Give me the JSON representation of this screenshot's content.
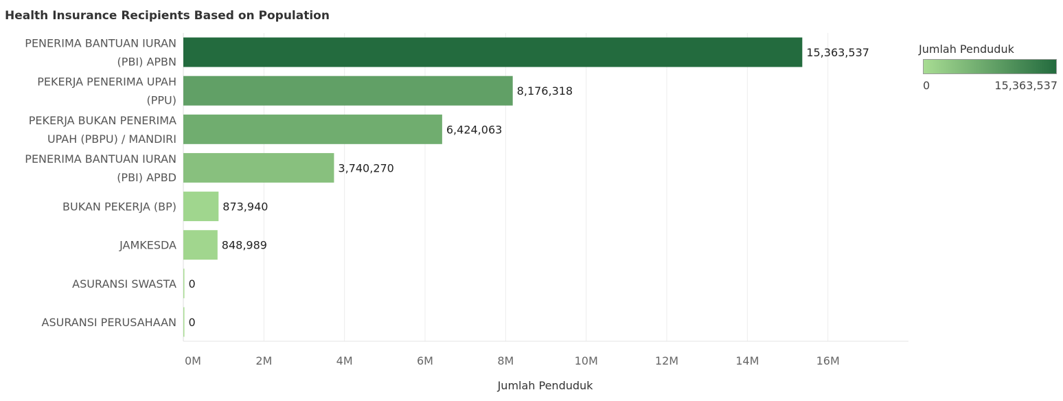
{
  "chart_data": {
    "type": "bar",
    "orientation": "horizontal",
    "title": "Health Insurance Recipients Based on Population",
    "xlabel": "Jumlah Penduduk",
    "ylabel": "",
    "categories": [
      [
        "PENERIMA BANTUAN IURAN",
        "(PBI) APBN"
      ],
      [
        "PEKERJA PENERIMA UPAH",
        "(PPU)"
      ],
      [
        "PEKERJA BUKAN PENERIMA",
        "UPAH (PBPU) / MANDIRI"
      ],
      [
        "PENERIMA BANTUAN IURAN",
        "(PBI) APBD"
      ],
      [
        "BUKAN PEKERJA (BP)"
      ],
      [
        "JAMKESDA"
      ],
      [
        "ASURANSI SWASTA"
      ],
      [
        "ASURANSI PERUSAHAAN"
      ]
    ],
    "values": [
      15363537,
      8176318,
      6424063,
      3740270,
      873940,
      848989,
      0,
      0
    ],
    "value_labels": [
      "15,363,537",
      "8,176,318",
      "6,424,063",
      "3,740,270",
      "873,940",
      "848,989",
      "0",
      "0"
    ],
    "xlim": [
      0,
      18000000
    ],
    "x_ticks": [
      0,
      2000000,
      4000000,
      6000000,
      8000000,
      10000000,
      12000000,
      14000000,
      16000000
    ],
    "x_tick_labels": [
      "0M",
      "2M",
      "4M",
      "6M",
      "8M",
      "10M",
      "12M",
      "14M",
      "16M"
    ],
    "grid": "vertical",
    "color_scale": {
      "min_color": "#a8dc93",
      "max_color": "#236b3e",
      "min": 0,
      "max": 15363537
    },
    "legend": {
      "title": "Jumlah Penduduk",
      "min_label": "0",
      "max_label": "15,363,537",
      "placement": "top-right"
    }
  }
}
